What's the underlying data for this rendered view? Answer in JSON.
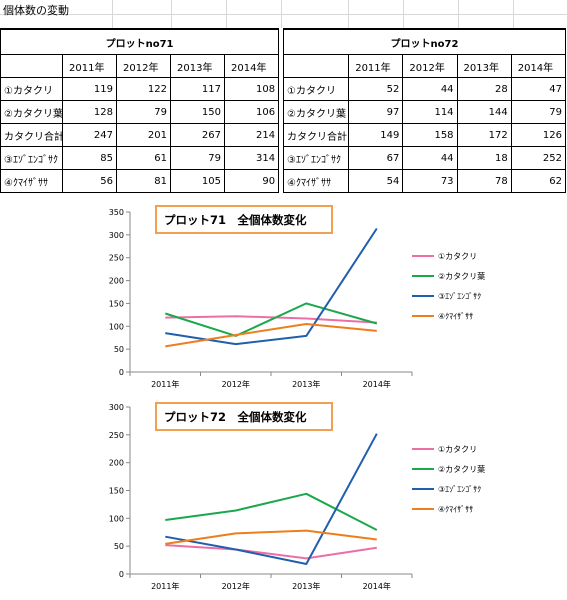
{
  "sheet": {
    "title": "個体数の変動",
    "tables": [
      {
        "header": "プロットno71",
        "years": [
          "2011年",
          "2012年",
          "2013年",
          "2014年"
        ],
        "rows": [
          {
            "label": "①カタクリ",
            "values": [
              "119",
              "122",
              "117",
              "108"
            ]
          },
          {
            "label": "②カタクリ葉",
            "values": [
              "128",
              "79",
              "150",
              "106"
            ]
          },
          {
            "label": "カタクリ合計",
            "values": [
              "247",
              "201",
              "267",
              "214"
            ]
          },
          {
            "label": "③ｴｿﾞｴﾝｺﾞｻｸ",
            "values": [
              "85",
              "61",
              "79",
              "314"
            ]
          },
          {
            "label": "④ｸﾏｲｻﾞｻｻ",
            "values": [
              "56",
              "81",
              "105",
              "90"
            ]
          }
        ]
      },
      {
        "header": "プロットno72",
        "years": [
          "2011年",
          "2012年",
          "2013年",
          "2014年"
        ],
        "rows": [
          {
            "label": "①カタクリ",
            "values": [
              "52",
              "44",
              "28",
              "47"
            ]
          },
          {
            "label": "②カタクリ葉",
            "values": [
              "97",
              "114",
              "144",
              "79"
            ]
          },
          {
            "label": "カタクリ合計",
            "values": [
              "149",
              "158",
              "172",
              "126"
            ]
          },
          {
            "label": "③ｴｿﾞｴﾝｺﾞｻｸ",
            "values": [
              "67",
              "44",
              "18",
              "252"
            ]
          },
          {
            "label": "④ｸﾏｲｻﾞｻｻ",
            "values": [
              "54",
              "73",
              "78",
              "62"
            ]
          }
        ]
      }
    ]
  },
  "colors": {
    "title_box_border": "#f0a050",
    "axis": "#888888",
    "series": [
      "#ec6fa4",
      "#1aa84a",
      "#1f5fae",
      "#ee7d1e"
    ]
  },
  "chart_data": [
    {
      "type": "line",
      "title": "プロット71　全個体数変化",
      "categories": [
        "2011年",
        "2012年",
        "2013年",
        "2014年"
      ],
      "ylim": [
        0,
        350
      ],
      "yticks": [
        "0",
        "50",
        "100",
        "150",
        "200",
        "250",
        "300",
        "350"
      ],
      "legend_position": "right",
      "series": [
        {
          "name": "①カタクリ",
          "values": [
            119,
            122,
            117,
            108
          ]
        },
        {
          "name": "②カタクリ葉",
          "values": [
            128,
            79,
            150,
            106
          ]
        },
        {
          "name": "③ｴｿﾞｴﾝｺﾞｻｸ",
          "values": [
            85,
            61,
            79,
            314
          ]
        },
        {
          "name": "④ｸﾏｲｻﾞｻｻ",
          "values": [
            56,
            81,
            105,
            90
          ]
        }
      ]
    },
    {
      "type": "line",
      "title": "プロット72　全個体数変化",
      "categories": [
        "2011年",
        "2012年",
        "2013年",
        "2014年"
      ],
      "ylim": [
        0,
        300
      ],
      "yticks": [
        "0",
        "50",
        "100",
        "150",
        "200",
        "250",
        "300"
      ],
      "legend_position": "right",
      "series": [
        {
          "name": "①カタクリ",
          "values": [
            52,
            44,
            28,
            47
          ]
        },
        {
          "name": "②カタクリ葉",
          "values": [
            97,
            114,
            144,
            79
          ]
        },
        {
          "name": "③ｴｿﾞｴﾝｺﾞｻｸ",
          "values": [
            67,
            44,
            18,
            252
          ]
        },
        {
          "name": "④ｸﾏｲｻﾞｻｻ",
          "values": [
            54,
            73,
            78,
            62
          ]
        }
      ]
    }
  ]
}
